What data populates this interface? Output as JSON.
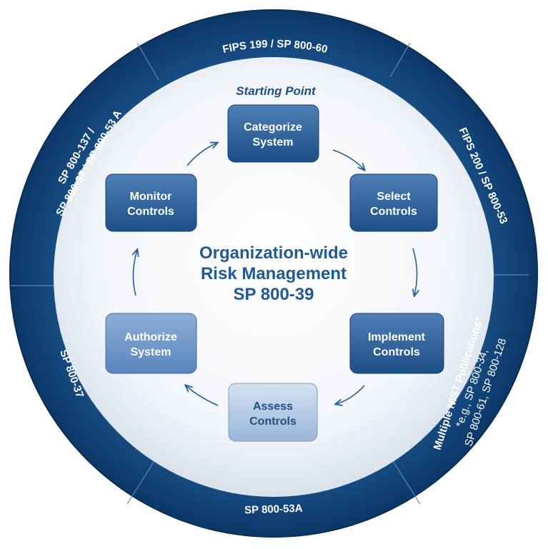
{
  "colors": {
    "ring_dark": "#0c3a6b",
    "ring_mid": "#175089",
    "inner_bg": "#eef1f6",
    "step_dark": "#24568c",
    "step_light": "#a9c0de",
    "arrow": "#2a5f96",
    "center_text": "#1f5a96"
  },
  "diagram": {
    "starting_point": "Starting Point",
    "center": {
      "line1": "Organization-wide",
      "line2": "Risk Management",
      "line3": "SP 800-39"
    },
    "steps": [
      {
        "id": "categorize",
        "line1": "Categorize",
        "line2": "System",
        "style": "dark"
      },
      {
        "id": "select",
        "line1": "Select",
        "line2": "Controls",
        "style": "dark"
      },
      {
        "id": "implement",
        "line1": "Implement",
        "line2": "Controls",
        "style": "dark"
      },
      {
        "id": "assess",
        "line1": "Assess",
        "line2": "Controls",
        "style": "light"
      },
      {
        "id": "authorize",
        "line1": "Authorize",
        "line2": "System",
        "style": "mid"
      },
      {
        "id": "monitor",
        "line1": "Monitor",
        "line2": "Controls",
        "style": "dark"
      }
    ],
    "ring_labels": {
      "top": "FIPS 199 / SP 800-60",
      "upper_right": "FIPS 200 / SP 800-53",
      "lower_right": {
        "line1": "Multiple NIST Publications*",
        "line2": "*e.g., SP 800-34,",
        "line3": "SP 800-61, SP 800-128"
      },
      "bottom": "SP 800-53A",
      "lower_left": "SP 800-37",
      "upper_left": {
        "line1": "SP 800-137 /",
        "line2": "SP 800-37 / SP 800-53 A"
      }
    }
  }
}
